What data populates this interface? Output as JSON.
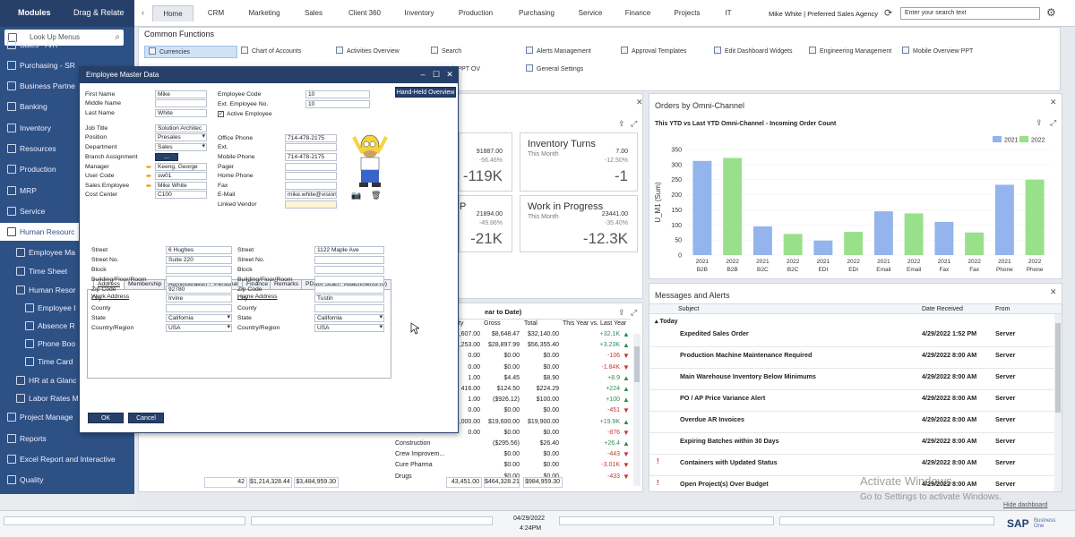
{
  "modules_tab": "Modules",
  "drag_relate_tab": "Drag & Relate",
  "nav_tabs": [
    "Home",
    "CRM",
    "Marketing",
    "Sales",
    "Client 360",
    "Inventory",
    "Production",
    "Purchasing",
    "Service",
    "Finance",
    "Projects",
    "IT"
  ],
  "user": "Mike White | Preferred Sales Agency",
  "search_placeholder": "Enter your search text",
  "sidebar": {
    "lookup_placeholder": "Look Up Menus",
    "items": [
      "Sales - A/R",
      "Purchasing - SR",
      "Business Partne",
      "Banking",
      "Inventory",
      "Resources",
      "Production",
      "MRP",
      "Service",
      "Human Resourc",
      "Employee Ma",
      "Time Sheet",
      "Human Resor",
      "Employee I",
      "Absence R",
      "Phone Boo",
      "Time Card",
      "HR at a Glanc",
      "Labor Rates M",
      "Project Manage",
      "Reports",
      "Excel Report and Interactive",
      "Quality"
    ]
  },
  "common_functions": {
    "title": "Common Functions",
    "items": [
      "Currencies",
      "Chart of Accounts",
      "Activities Overview",
      "Search",
      "Alerts Management",
      "Approval Templates",
      "Edit Dashboard Widgets",
      "Engineering Management",
      "Mobile Overview PPT",
      "k PPT OV",
      "General Settings"
    ]
  },
  "kpis": [
    {
      "value": "91887.00",
      "pct": "-56.46%",
      "big": "-119K"
    },
    {
      "title": "Inventory Turns",
      "sub": "This Month",
      "value": "7.00",
      "pct": "-12.50%",
      "big": "-1"
    },
    {
      "frag": "P",
      "value": "21894.00",
      "pct": "-49.86%",
      "big": "-21K"
    },
    {
      "title": "Work in Progress",
      "sub": "This Month",
      "value": "23441.00",
      "pct": "-35.40%",
      "big": "-12.3K"
    }
  ],
  "orders_panel": {
    "title": "Orders by Omni-Channel",
    "subtitle": "This YTD vs Last YTD Omni-Channel - Incoming Order Count"
  },
  "chart_data": {
    "type": "bar",
    "title": "This YTD vs Last YTD Omni-Channel - Incoming Order Count",
    "ylabel": "U_M1 (Sum)",
    "ylim": [
      0,
      400
    ],
    "yticks": [
      0,
      50,
      100,
      150,
      200,
      250,
      300,
      350
    ],
    "categories": [
      "2021 B2B",
      "2022 B2B",
      "2021 B2C",
      "2022 B2C",
      "2021 EDI",
      "2022 EDI",
      "2021 Email",
      "2022 Email",
      "2021 Fax",
      "2022 Fax",
      "2021 Phone",
      "2022 Phone"
    ],
    "series": [
      {
        "name": "2021",
        "color": "#93b4ec"
      },
      {
        "name": "2022",
        "color": "#99e08a"
      }
    ],
    "values": [
      312,
      322,
      95,
      70,
      48,
      77,
      145,
      138,
      110,
      75,
      233,
      250
    ],
    "legend": "top-right"
  },
  "messages": {
    "title": "Messages and Alerts",
    "columns": [
      "Subject",
      "Date Received",
      "From"
    ],
    "group": "Today",
    "rows": [
      {
        "subject": "Expedited Sales Order",
        "date": "4/29/2022 1:52 PM",
        "from": "Server"
      },
      {
        "subject": "Production Machine Maintenance Required",
        "date": "4/29/2022 8:00 AM",
        "from": "Server"
      },
      {
        "subject": "Main Warehouse Inventory Below Minimums",
        "date": "4/29/2022 8:00 AM",
        "from": "Server"
      },
      {
        "subject": "PO / AP Price Variance Alert",
        "date": "4/29/2022 8:00 AM",
        "from": "Server"
      },
      {
        "subject": "Overdue AR Invoices",
        "date": "4/29/2022 8:00 AM",
        "from": "Server"
      },
      {
        "subject": "Expiring Batches within 30 Days",
        "date": "4/29/2022 8:00 AM",
        "from": "Server"
      },
      {
        "subject": "Containers with Updated Status",
        "date": "4/29/2022 8:00 AM",
        "from": "Server"
      },
      {
        "subject": "Open Project(s) Over Budget",
        "date": "4/29/2022 8:00 AM",
        "from": "Server"
      }
    ]
  },
  "sales_table": {
    "title_frag": "ear to Date)",
    "columns": [
      "ty",
      "Gross",
      "Total",
      "This Year vs. Last Year"
    ],
    "rows": [
      {
        "a": ",607.00",
        "b": "$8,648.47",
        "c": "$32,140.00",
        "d": "+32.1K",
        "t": "up"
      },
      {
        "a": ",253.00",
        "b": "$28,897.99",
        "c": "$56,355.40",
        "d": "+3.23K",
        "t": "up"
      },
      {
        "a": "0.00",
        "b": "$0.00",
        "c": "$0.00",
        "d": "-106",
        "t": "dn"
      },
      {
        "a": "0.00",
        "b": "$0.00",
        "c": "$0.00",
        "d": "-1.84K",
        "t": "dn"
      },
      {
        "a": "1.00",
        "b": "$4.45",
        "c": "$8.90",
        "d": "+8.9",
        "t": "up"
      },
      {
        "a": "416.00",
        "b": "$124.50",
        "c": "$224.29",
        "d": "+224",
        "t": "up"
      },
      {
        "a": "1.00",
        "b": "($926.12)",
        "c": "$100.00",
        "d": "+100",
        "t": "up"
      },
      {
        "a": "0.00",
        "b": "$0.00",
        "c": "$0.00",
        "d": "-451",
        "t": "dn"
      },
      {
        "a": ",000.00",
        "b": "$19,600.00",
        "c": "$19,900.00",
        "d": "+19.9K",
        "t": "up"
      },
      {
        "a": "0.00",
        "b": "$0.00",
        "c": "$0.00",
        "d": "-876",
        "t": "dn"
      },
      {
        "a": "Construction",
        "b": "($295.56)",
        "c": "$26.40",
        "d": "+26.4",
        "t": "up"
      },
      {
        "a": "Crew Improvem...",
        "b": "$0.00",
        "c": "$0.00",
        "d": "-443",
        "t": "dn"
      },
      {
        "a": "Cure Pharma",
        "b": "$0.00",
        "c": "$0.00",
        "d": "-3.01K",
        "t": "dn"
      },
      {
        "a": "Drugs",
        "b": "$0.00",
        "c": "$0.00",
        "d": "-433",
        "t": "dn"
      }
    ],
    "totals": [
      "43,451.00",
      "$464,328.21",
      "$984,959.30"
    ]
  },
  "left_totals": [
    "42",
    "$1,214,328.44",
    "$3,484,959.30"
  ],
  "employee_window": {
    "title": "Employee Master Data",
    "handheld": "Hand-Held Overview",
    "labels": {
      "first": "First Name",
      "middle": "Middle Name",
      "last": "Last Name",
      "job": "Job Title",
      "position": "Position",
      "dept": "Department",
      "branch": "Branch Assignment",
      "manager": "Manager",
      "usercode": "User Code",
      "salesemp": "Sales Employee",
      "cost": "Cost Center",
      "empcode": "Employee Code",
      "extno": "Ext. Employee No.",
      "active": "Active Employee",
      "office": "Office Phone",
      "ext": "Ext.",
      "mobile": "Mobile Phone",
      "pager": "Pager",
      "home": "Home Phone",
      "fax": "Fax",
      "email": "E-Mail",
      "linked": "Linked Vendor"
    },
    "values": {
      "first": "Mike",
      "middle": "",
      "last": "White",
      "job": "Solution Architec",
      "position": "Presales",
      "dept": "Sales",
      "branch": "...",
      "manager": "Keeng, George",
      "usercode": "sw01",
      "salesemp": "Mike White",
      "cost": "C100",
      "empcode": "10",
      "extno": "10",
      "office": "714-478-2175",
      "ext": "",
      "mobile": "714-478-2175",
      "email": "mike.white@vision3"
    },
    "tabs": [
      "Address",
      "Membership",
      "Administration",
      "Personal",
      "Finance",
      "Remarks",
      "PDMX Scan",
      "Attachments (0)"
    ],
    "work_address_title": "Work Address",
    "home_address_title": "Home Address",
    "addr_labels": [
      "Street",
      "Street No.",
      "Block",
      "Building/Floor/Room",
      "Zip Code",
      "City",
      "County",
      "State",
      "Country/Region"
    ],
    "work": [
      "6 Hughes",
      "Suite 220",
      "",
      "",
      "92780",
      "Irvine",
      "",
      "California",
      "USA"
    ],
    "home": [
      "1122 Maple Ave",
      "",
      "",
      "",
      "",
      "Tustin",
      "",
      "California",
      "USA"
    ],
    "ok": "OK",
    "cancel": "Cancel"
  },
  "footer": {
    "date": "04/29/2022",
    "time": "4:24PM",
    "watermark1": "Activate Windows",
    "watermark2": "Go to Settings to activate Windows.",
    "hide": "Hide dashboard",
    "logo_prefix": "SAP",
    "logo_small": "Business One"
  }
}
